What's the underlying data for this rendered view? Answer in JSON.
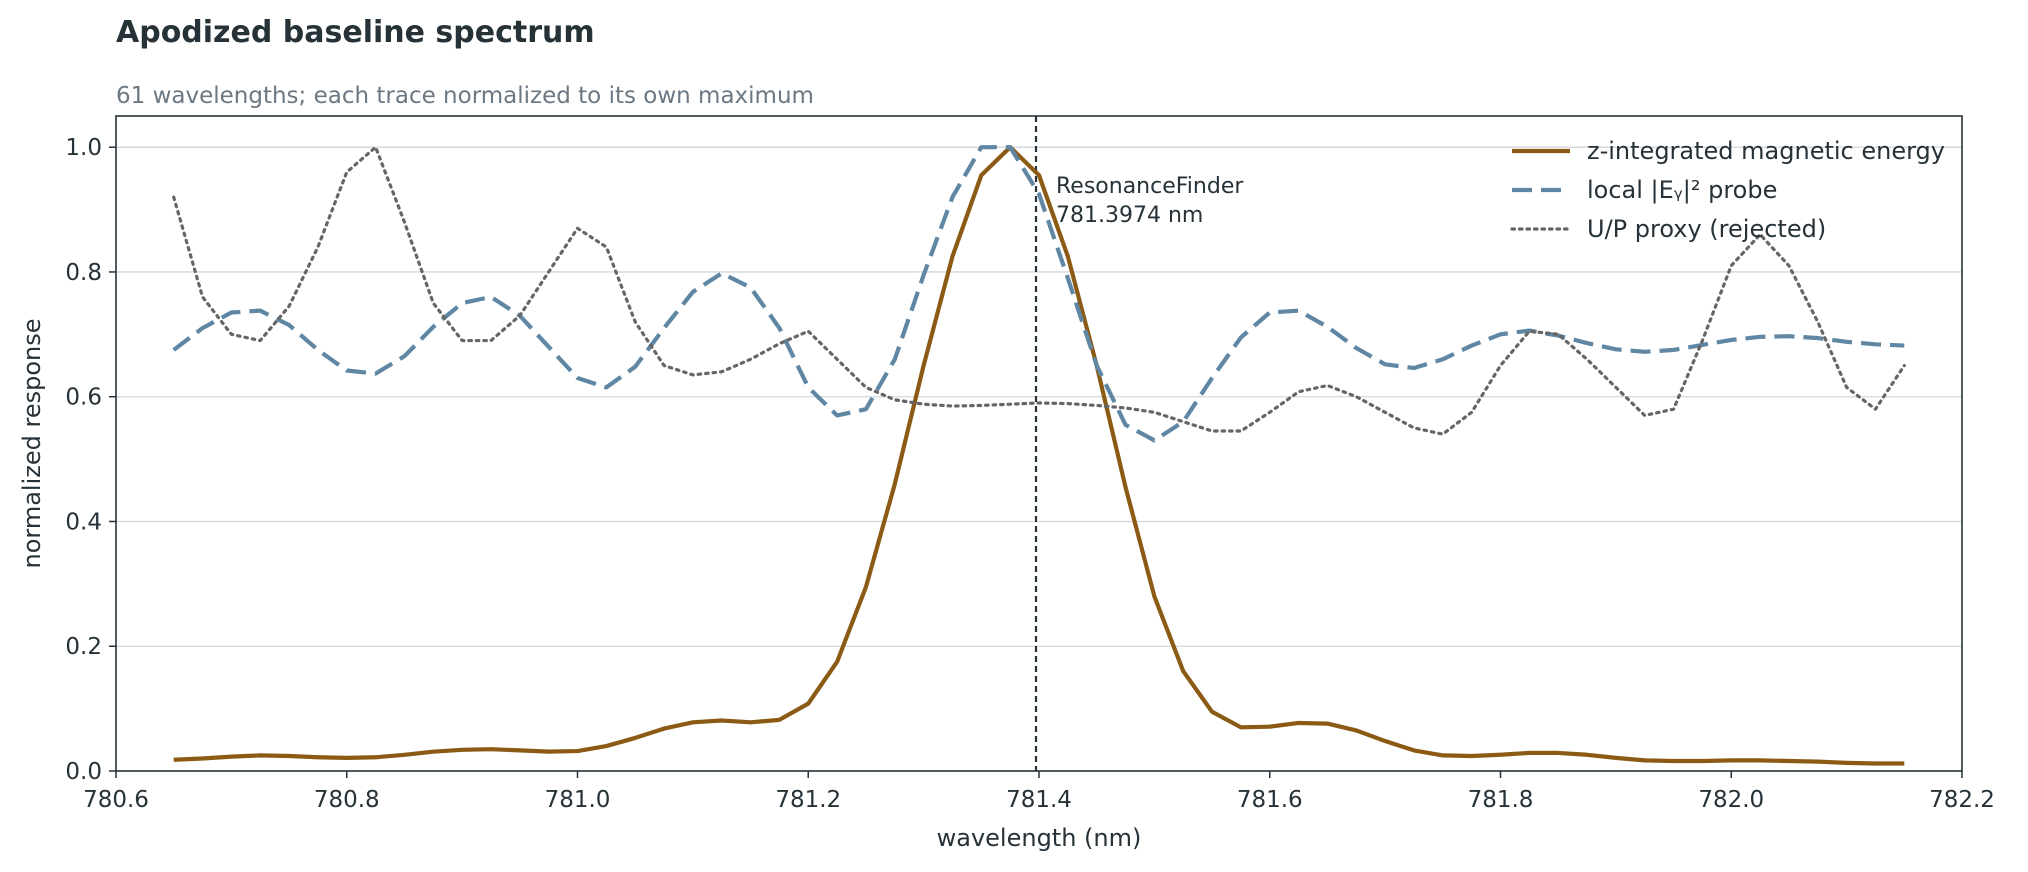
{
  "chart_data": {
    "type": "line",
    "title": "Apodized baseline spectrum",
    "subtitle": "61 wavelengths; each trace normalized to its own maximum",
    "xlabel": "wavelength (nm)",
    "ylabel": "normalized response",
    "xlim": [
      780.6,
      782.2
    ],
    "ylim": [
      0.0,
      1.05
    ],
    "xticks": [
      780.6,
      780.8,
      781.0,
      781.2,
      781.4,
      781.6,
      781.8,
      782.0,
      782.2
    ],
    "yticks": [
      0.0,
      0.2,
      0.4,
      0.6,
      0.8,
      1.0
    ],
    "xtick_labels": [
      "780.6",
      "780.8",
      "781.0",
      "781.2",
      "781.4",
      "781.6",
      "781.8",
      "782.0",
      "782.2"
    ],
    "ytick_labels": [
      "0.0",
      "0.2",
      "0.4",
      "0.6",
      "0.8",
      "1.0"
    ],
    "grid": "horizontal",
    "legend_position": "top-right",
    "x_start": 780.65,
    "x_step": 0.025,
    "series": [
      {
        "name": "z-integrated magnetic energy",
        "color": "#8b5a14",
        "style": "solid",
        "values": [
          0.018,
          0.02,
          0.023,
          0.025,
          0.024,
          0.022,
          0.021,
          0.022,
          0.026,
          0.031,
          0.034,
          0.035,
          0.033,
          0.031,
          0.032,
          0.04,
          0.053,
          0.068,
          0.078,
          0.081,
          0.078,
          0.082,
          0.108,
          0.175,
          0.295,
          0.46,
          0.65,
          0.825,
          0.955,
          1.0,
          0.955,
          0.825,
          0.65,
          0.455,
          0.28,
          0.16,
          0.095,
          0.07,
          0.071,
          0.077,
          0.076,
          0.065,
          0.048,
          0.033,
          0.025,
          0.024,
          0.026,
          0.029,
          0.029,
          0.026,
          0.021,
          0.017,
          0.016,
          0.016,
          0.017,
          0.017,
          0.016,
          0.015,
          0.013,
          0.012,
          0.012
        ]
      },
      {
        "name": "local |Eᵧ|² probe",
        "color": "#5f87a3",
        "style": "dashed",
        "values": [
          0.675,
          0.71,
          0.735,
          0.738,
          0.715,
          0.675,
          0.642,
          0.637,
          0.665,
          0.712,
          0.75,
          0.76,
          0.73,
          0.68,
          0.63,
          0.615,
          0.648,
          0.71,
          0.768,
          0.798,
          0.775,
          0.71,
          0.615,
          0.57,
          0.58,
          0.66,
          0.795,
          0.92,
          1.0,
          1.0,
          0.925,
          0.79,
          0.65,
          0.555,
          0.53,
          0.56,
          0.63,
          0.695,
          0.735,
          0.738,
          0.712,
          0.678,
          0.652,
          0.646,
          0.66,
          0.682,
          0.7,
          0.706,
          0.698,
          0.686,
          0.676,
          0.672,
          0.675,
          0.683,
          0.691,
          0.696,
          0.697,
          0.694,
          0.688,
          0.684,
          0.682
        ]
      },
      {
        "name": "U/P proxy (rejected)",
        "color": "#666666",
        "style": "dotted",
        "values": [
          0.92,
          0.76,
          0.7,
          0.69,
          0.745,
          0.84,
          0.96,
          1.0,
          0.88,
          0.75,
          0.69,
          0.69,
          0.73,
          0.8,
          0.87,
          0.84,
          0.72,
          0.65,
          0.635,
          0.64,
          0.66,
          0.685,
          0.705,
          0.66,
          0.615,
          0.595,
          0.588,
          0.585,
          0.586,
          0.588,
          0.59,
          0.589,
          0.586,
          0.582,
          0.575,
          0.56,
          0.545,
          0.545,
          0.575,
          0.608,
          0.618,
          0.6,
          0.575,
          0.55,
          0.54,
          0.575,
          0.65,
          0.705,
          0.7,
          0.66,
          0.615,
          0.57,
          0.58,
          0.69,
          0.81,
          0.86,
          0.81,
          0.72,
          0.615,
          0.58,
          0.65
        ]
      }
    ],
    "annotations": [
      {
        "type": "vline",
        "x": 781.3974,
        "style": "dashed",
        "color": "#263238",
        "text_lines": [
          "ResonanceFinder",
          "781.3974 nm"
        ]
      }
    ]
  }
}
